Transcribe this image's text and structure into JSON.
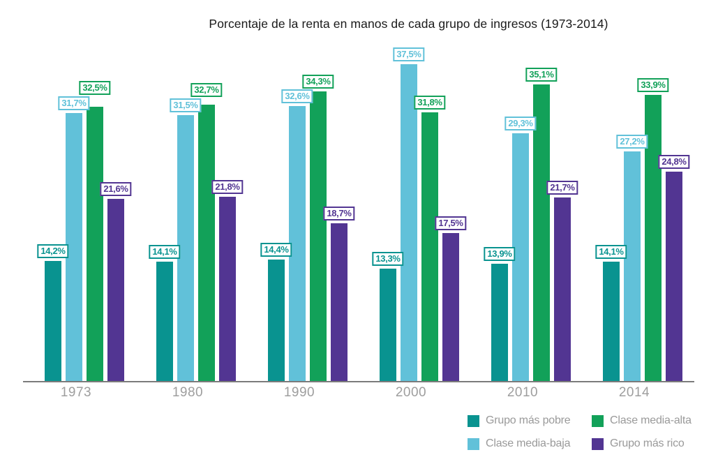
{
  "chart_data": {
    "type": "bar",
    "title": "Porcentaje de la renta en manos de cada grupo de ingresos (1973-2014)",
    "categories": [
      "1973",
      "1980",
      "1990",
      "2000",
      "2010",
      "2014"
    ],
    "series": [
      {
        "name": "Grupo más pobre",
        "color": "#099390",
        "values": [
          14.2,
          14.1,
          14.4,
          13.3,
          13.9,
          14.1
        ]
      },
      {
        "name": "Clase media-baja",
        "color": "#61C1D9",
        "values": [
          31.7,
          31.5,
          32.6,
          37.5,
          29.3,
          27.2
        ]
      },
      {
        "name": "Clase media-alta",
        "color": "#12A159",
        "values": [
          32.5,
          32.7,
          34.3,
          31.8,
          35.1,
          33.9
        ]
      },
      {
        "name": "Grupo más rico",
        "color": "#523592",
        "values": [
          21.6,
          21.8,
          18.7,
          17.5,
          21.7,
          24.8
        ]
      }
    ],
    "value_label_format": "decimal comma + %",
    "xlabel": "",
    "ylabel": "",
    "ylim": [
      0,
      40
    ],
    "grid": false,
    "legend_position": "bottom-right",
    "legend_order": [
      "Grupo más pobre",
      "Clase media-alta",
      "Clase media-baja",
      "Grupo más rico"
    ]
  },
  "colors": {
    "axis_line": "#7b7b7b",
    "year_label": "#9e9e9e",
    "legend_text": "#9a9a9a",
    "title_text": "#1a1a1a",
    "background": "#ffffff"
  }
}
